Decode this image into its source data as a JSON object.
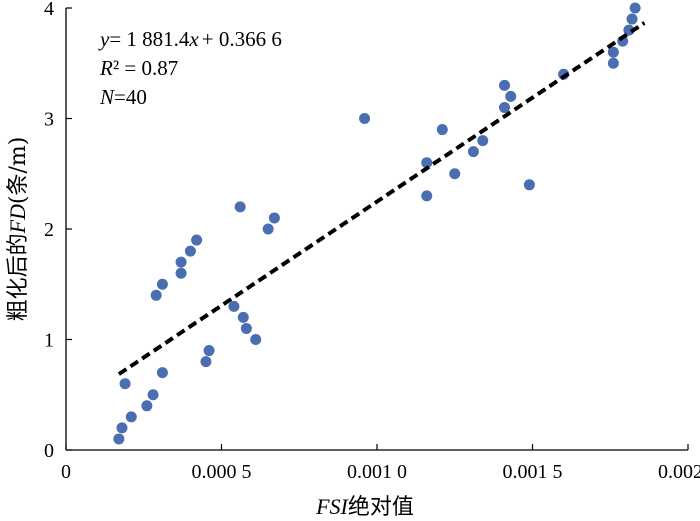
{
  "chart_data": {
    "type": "scatter",
    "xlabel_var": "FSI",
    "xlabel_suffix": "绝对值",
    "ylabel_prefix": "粗化后的",
    "ylabel_var": "FD",
    "ylabel_unit": "(条/m)",
    "xlim": [
      0,
      0.002
    ],
    "ylim": [
      0,
      4
    ],
    "x_ticks": [
      0,
      0.0005,
      0.001,
      0.0015,
      0.002
    ],
    "x_tick_labels": [
      "0",
      "0.000 5",
      "0.001 0",
      "0.001 5",
      "0.002 0"
    ],
    "y_ticks": [
      0,
      1,
      2,
      3,
      4
    ],
    "y_tick_labels": [
      "0",
      "1",
      "2",
      "3",
      "4"
    ],
    "grid": false,
    "annotation": {
      "line1_var": "y",
      "line1_eq": "= 1 881.4",
      "line1_var2": "x",
      "line1_rest": "+ 0.366 6",
      "line2_var": "R",
      "line2_rest": "² = 0.87",
      "line3_var": "N",
      "line3_rest": "=40"
    },
    "trendline": {
      "slope": 1881.4,
      "intercept": 0.3666,
      "x_range": [
        0.00017,
        0.00186
      ]
    },
    "points": [
      {
        "x": 0.00017,
        "y": 0.1
      },
      {
        "x": 0.00018,
        "y": 0.2
      },
      {
        "x": 0.00019,
        "y": 0.6
      },
      {
        "x": 0.00021,
        "y": 0.3
      },
      {
        "x": 0.00026,
        "y": 0.4
      },
      {
        "x": 0.00028,
        "y": 0.5
      },
      {
        "x": 0.00031,
        "y": 0.7
      },
      {
        "x": 0.00029,
        "y": 1.4
      },
      {
        "x": 0.00031,
        "y": 1.5
      },
      {
        "x": 0.00037,
        "y": 1.6
      },
      {
        "x": 0.00037,
        "y": 1.7
      },
      {
        "x": 0.0004,
        "y": 1.8
      },
      {
        "x": 0.00042,
        "y": 1.9
      },
      {
        "x": 0.00045,
        "y": 0.8
      },
      {
        "x": 0.00046,
        "y": 0.9
      },
      {
        "x": 0.00054,
        "y": 1.3
      },
      {
        "x": 0.00056,
        "y": 2.2
      },
      {
        "x": 0.00057,
        "y": 1.2
      },
      {
        "x": 0.00058,
        "y": 1.1
      },
      {
        "x": 0.00061,
        "y": 1.0
      },
      {
        "x": 0.00065,
        "y": 2.0
      },
      {
        "x": 0.00067,
        "y": 2.1
      },
      {
        "x": 0.00096,
        "y": 3.0
      },
      {
        "x": 0.00116,
        "y": 2.3
      },
      {
        "x": 0.00116,
        "y": 2.6
      },
      {
        "x": 0.00121,
        "y": 2.9
      },
      {
        "x": 0.00125,
        "y": 2.5
      },
      {
        "x": 0.00131,
        "y": 2.7
      },
      {
        "x": 0.00134,
        "y": 2.8
      },
      {
        "x": 0.00141,
        "y": 3.3
      },
      {
        "x": 0.00141,
        "y": 3.1
      },
      {
        "x": 0.00143,
        "y": 3.2
      },
      {
        "x": 0.00149,
        "y": 2.4
      },
      {
        "x": 0.0016,
        "y": 3.4
      },
      {
        "x": 0.00176,
        "y": 3.5
      },
      {
        "x": 0.00176,
        "y": 3.6
      },
      {
        "x": 0.00179,
        "y": 3.7
      },
      {
        "x": 0.00181,
        "y": 3.8
      },
      {
        "x": 0.00182,
        "y": 3.9
      },
      {
        "x": 0.00183,
        "y": 4.0
      }
    ],
    "colors": {
      "points": "#4a6eb0",
      "trendline": "#000000",
      "axis": "#000000"
    }
  }
}
